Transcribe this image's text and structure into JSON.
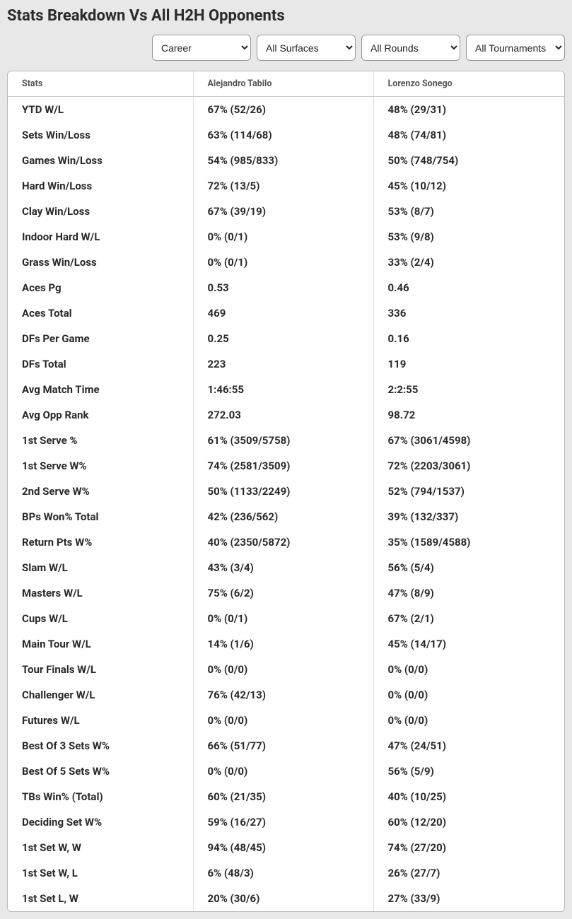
{
  "title": "Stats Breakdown Vs All H2H Opponents",
  "filters": {
    "period": "Career",
    "surface": "All Surfaces",
    "round": "All Rounds",
    "tournament": "All Tournaments"
  },
  "headers": {
    "stats": "Stats",
    "player1": "Alejandro Tabilo",
    "player2": "Lorenzo Sonego"
  },
  "rows": [
    {
      "stat": "YTD W/L",
      "p1": "67% (52/26)",
      "p2": "48% (29/31)"
    },
    {
      "stat": "Sets Win/Loss",
      "p1": "63% (114/68)",
      "p2": "48% (74/81)"
    },
    {
      "stat": "Games Win/Loss",
      "p1": "54% (985/833)",
      "p2": "50% (748/754)"
    },
    {
      "stat": "Hard Win/Loss",
      "p1": "72% (13/5)",
      "p2": "45% (10/12)"
    },
    {
      "stat": "Clay Win/Loss",
      "p1": "67% (39/19)",
      "p2": "53% (8/7)"
    },
    {
      "stat": "Indoor Hard W/L",
      "p1": "0% (0/1)",
      "p2": "53% (9/8)"
    },
    {
      "stat": "Grass Win/Loss",
      "p1": "0% (0/1)",
      "p2": "33% (2/4)"
    },
    {
      "stat": "Aces Pg",
      "p1": "0.53",
      "p2": "0.46"
    },
    {
      "stat": "Aces Total",
      "p1": "469",
      "p2": "336"
    },
    {
      "stat": "DFs Per Game",
      "p1": "0.25",
      "p2": "0.16"
    },
    {
      "stat": "DFs Total",
      "p1": "223",
      "p2": "119"
    },
    {
      "stat": "Avg Match Time",
      "p1": "1:46:55",
      "p2": "2:2:55"
    },
    {
      "stat": "Avg Opp Rank",
      "p1": "272.03",
      "p2": "98.72"
    },
    {
      "stat": "1st Serve %",
      "p1": "61% (3509/5758)",
      "p2": "67% (3061/4598)"
    },
    {
      "stat": "1st Serve W%",
      "p1": "74% (2581/3509)",
      "p2": "72% (2203/3061)"
    },
    {
      "stat": "2nd Serve W%",
      "p1": "50% (1133/2249)",
      "p2": "52% (794/1537)"
    },
    {
      "stat": "BPs Won% Total",
      "p1": "42% (236/562)",
      "p2": "39% (132/337)"
    },
    {
      "stat": "Return Pts W%",
      "p1": "40% (2350/5872)",
      "p2": "35% (1589/4588)"
    },
    {
      "stat": "Slam W/L",
      "p1": "43% (3/4)",
      "p2": "56% (5/4)"
    },
    {
      "stat": "Masters W/L",
      "p1": "75% (6/2)",
      "p2": "47% (8/9)"
    },
    {
      "stat": "Cups W/L",
      "p1": "0% (0/1)",
      "p2": "67% (2/1)"
    },
    {
      "stat": "Main Tour W/L",
      "p1": "14% (1/6)",
      "p2": "45% (14/17)"
    },
    {
      "stat": "Tour Finals W/L",
      "p1": "0% (0/0)",
      "p2": "0% (0/0)"
    },
    {
      "stat": "Challenger W/L",
      "p1": "76% (42/13)",
      "p2": "0% (0/0)"
    },
    {
      "stat": "Futures W/L",
      "p1": "0% (0/0)",
      "p2": "0% (0/0)"
    },
    {
      "stat": "Best Of 3 Sets W%",
      "p1": "66% (51/77)",
      "p2": "47% (24/51)"
    },
    {
      "stat": "Best Of 5 Sets W%",
      "p1": "0% (0/0)",
      "p2": "56% (5/9)"
    },
    {
      "stat": "TBs Win% (Total)",
      "p1": "60% (21/35)",
      "p2": "40% (10/25)"
    },
    {
      "stat": "Deciding Set W%",
      "p1": "59% (16/27)",
      "p2": "60% (12/20)"
    },
    {
      "stat": "1st Set W, W",
      "p1": "94% (48/45)",
      "p2": "74% (27/20)"
    },
    {
      "stat": "1st Set W, L",
      "p1": "6% (48/3)",
      "p2": "26% (27/7)"
    },
    {
      "stat": "1st Set L, W",
      "p1": "20% (30/6)",
      "p2": "27% (33/9)"
    }
  ]
}
